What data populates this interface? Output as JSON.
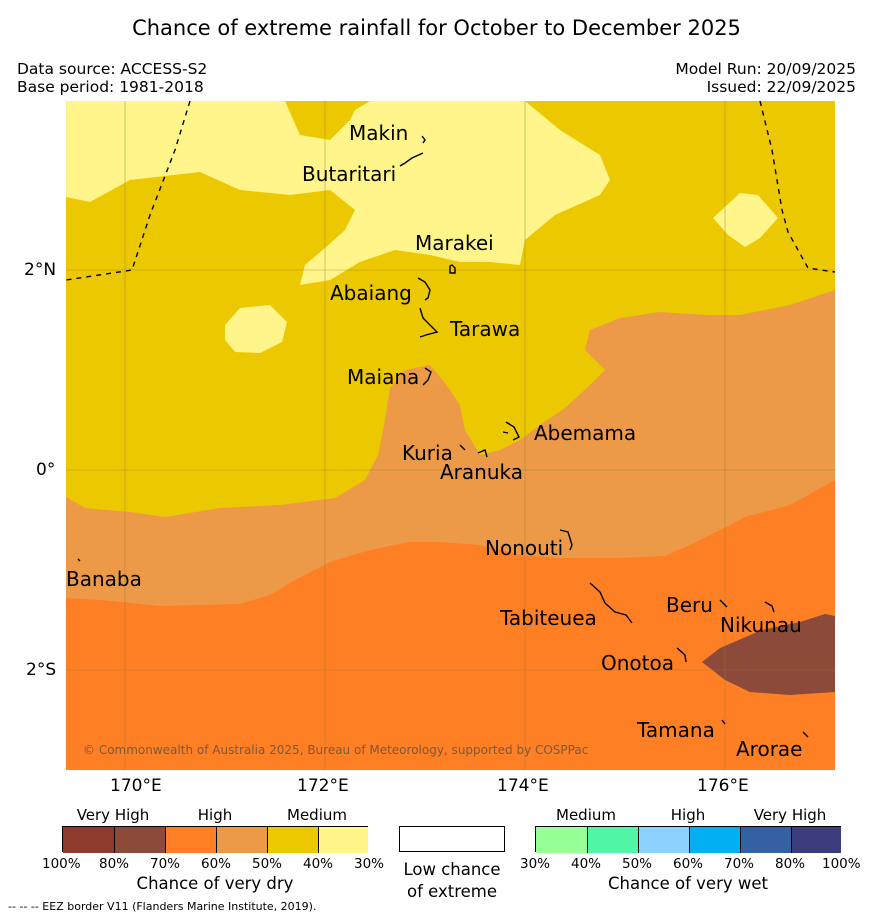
{
  "title": "Chance of extreme rainfall for October to December 2025",
  "meta": {
    "data_source": "Data source: ACCESS-S2",
    "base_period": "Base period: 1981-2018",
    "model_run": "Model Run: 20/09/2025",
    "issued": "Issued: 22/09/2025"
  },
  "axes": {
    "lon_ticks": [
      "170°E",
      "172°E",
      "174°E",
      "176°E"
    ],
    "lat_ticks": [
      "2°N",
      "0°",
      "2°S"
    ]
  },
  "places": {
    "makin": "Makin",
    "butaritari": "Butaritari",
    "marakei": "Marakei",
    "abaiang": "Abaiang",
    "tarawa": "Tarawa",
    "maiana": "Maiana",
    "abemama": "Abemama",
    "kuria": "Kuria",
    "aranuka": "Aranuka",
    "nonouti": "Nonouti",
    "banaba": "Banaba",
    "tabiteuea": "Tabiteuea",
    "beru": "Beru",
    "nikunau": "Nikunau",
    "onotoa": "Onotoa",
    "tamana": "Tamana",
    "arorae": "Arorae"
  },
  "copyright": "© Commonwealth of Australia 2025, Bureau of Meteorology, supported by COSPPac",
  "legend": {
    "dry": {
      "categories": [
        "Very High",
        "High",
        "Medium"
      ],
      "ticks": [
        "100%",
        "80%",
        "70%",
        "60%",
        "50%",
        "40%",
        "30%"
      ],
      "colors": [
        "#8e3b2e",
        "#8b4a3a",
        "#ff7f24",
        "#ec9a48",
        "#ecc800",
        "#fff58a"
      ],
      "title": "Chance of very dry"
    },
    "low": {
      "line1": "Low chance",
      "line2": "of extreme",
      "color": "#ffffff"
    },
    "wet": {
      "categories": [
        "Medium",
        "High",
        "Very High"
      ],
      "ticks": [
        "30%",
        "40%",
        "50%",
        "60%",
        "70%",
        "80%",
        "100%"
      ],
      "colors": [
        "#96ff96",
        "#50f5a6",
        "#8cd2ff",
        "#00b0f0",
        "#3460a4",
        "#3c3c7c"
      ],
      "title": "Chance of very wet"
    }
  },
  "footer": "-- -- -- EEZ border V11 (Flanders Marine Institute, 2019)."
}
